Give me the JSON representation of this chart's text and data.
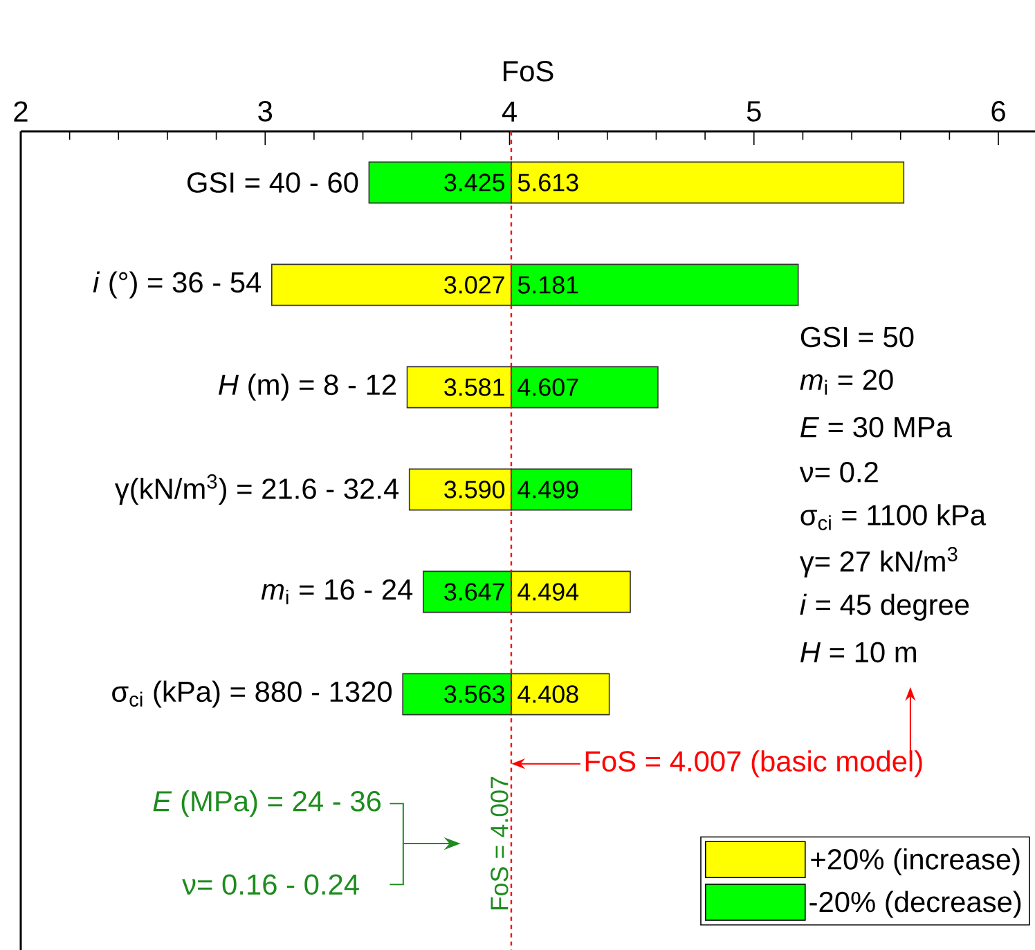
{
  "chart_data": {
    "type": "bar",
    "orientation": "horizontal",
    "xlabel": "FoS",
    "categories": [
      "GSI = 40 - 60",
      "*i* (°) = 36 - 54",
      "*H* (m) = 8 - 12",
      "γ(kN/m$^{3}$) = 21.6 - 32.4",
      "*m*$_{i}$ = 16 - 24",
      "σ$_{ci}$ (kPa) = 880 - 1320"
    ],
    "series": [
      {
        "name": "+20% (increase)",
        "color": "#ffff00",
        "base": [
          4.007,
          4.007,
          4.007,
          4.007,
          4.007,
          4.007
        ],
        "values": [
          1.606,
          -0.98,
          -0.426,
          -0.417,
          0.487,
          0.401
        ],
        "value_labels": [
          "5.613",
          "3.027",
          "3.581",
          "3.590",
          "4.494",
          "4.408"
        ]
      },
      {
        "name": "-20% (decrease)",
        "color": "#00ff00",
        "base": [
          4.007,
          4.007,
          4.007,
          4.007,
          4.007,
          4.007
        ],
        "values": [
          -0.582,
          1.174,
          0.6,
          0.492,
          -0.36,
          -0.444
        ],
        "value_labels": [
          "3.425",
          "5.181",
          "4.607",
          "4.499",
          "3.647",
          "3.563"
        ]
      }
    ],
    "xlim": [
      2,
      6.15
    ],
    "xticks": [
      2,
      3,
      4,
      5,
      6
    ],
    "ref_lines": [
      {
        "axis": "x",
        "value": 4.007,
        "label": "FoS = 4.007",
        "color": "#ff0000",
        "line_style": "dashed"
      }
    ],
    "legend": "bottom right",
    "annotations": [
      "FoS = 4.007 (basic model)",
      "*E* (MPa) = 24 - 36",
      "ν= 0.16 - 0.24",
      "GSI = 50",
      "*m*$_{i}$ = 20",
      "*E* = 30 MPa",
      "ν= 0.2",
      "σ$_{ci}$ = 1100 kPa",
      "γ=  27  kN/m$^{3}$",
      "*i* = 45 degree",
      "*H* = 10 m"
    ]
  }
}
